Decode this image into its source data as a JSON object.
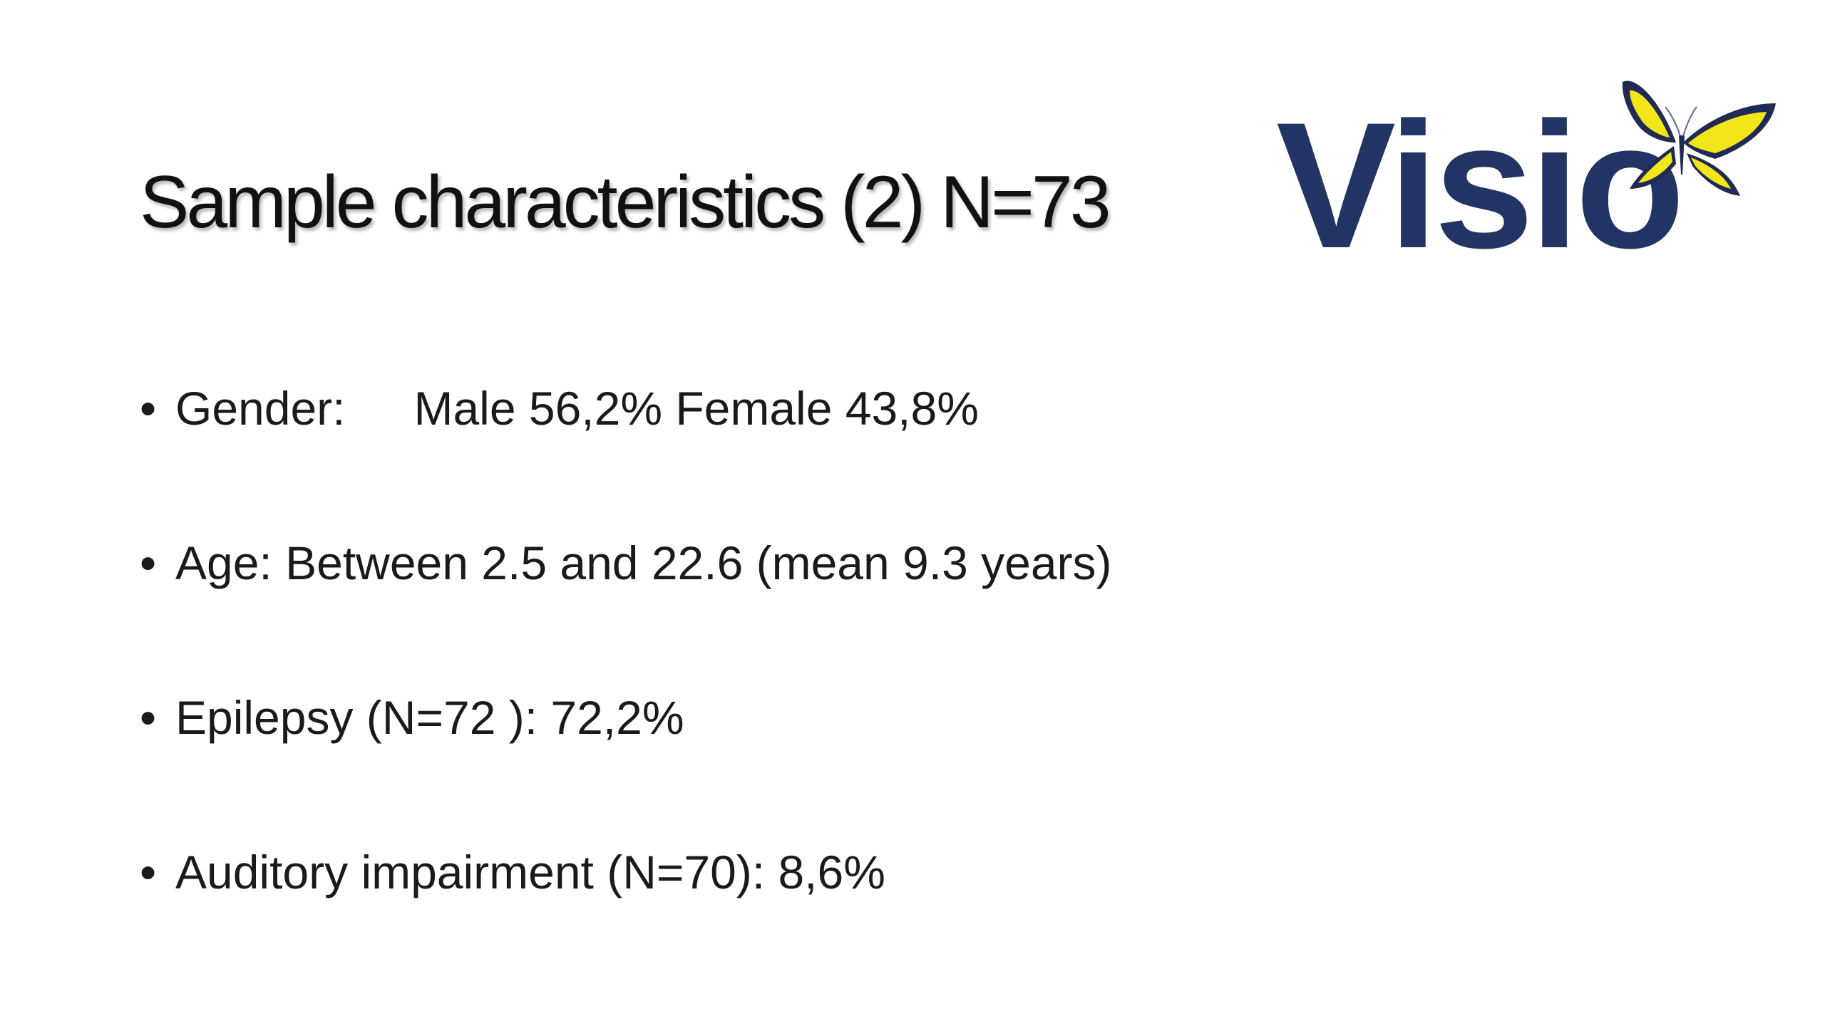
{
  "slide": {
    "title": "Sample characteristics (2) N=73",
    "logo": {
      "text": "Visio",
      "icon": "butterfly-icon",
      "colors": {
        "wordmark": "#223463",
        "wing_yellow": "#F2E51A",
        "wing_dark": "#1F2A55"
      }
    },
    "bullets": [
      {
        "label": "Gender:",
        "value": "Male 56,2% Female 43,8%"
      },
      {
        "text": "Age: Between 2.5 and 22.6 (mean 9.3 years)"
      },
      {
        "text": "Epilepsy (N=72 ): 72,2%"
      },
      {
        "text": "Auditory impairment (N=70): 8,6%"
      }
    ],
    "bullet_symbol": "•"
  }
}
